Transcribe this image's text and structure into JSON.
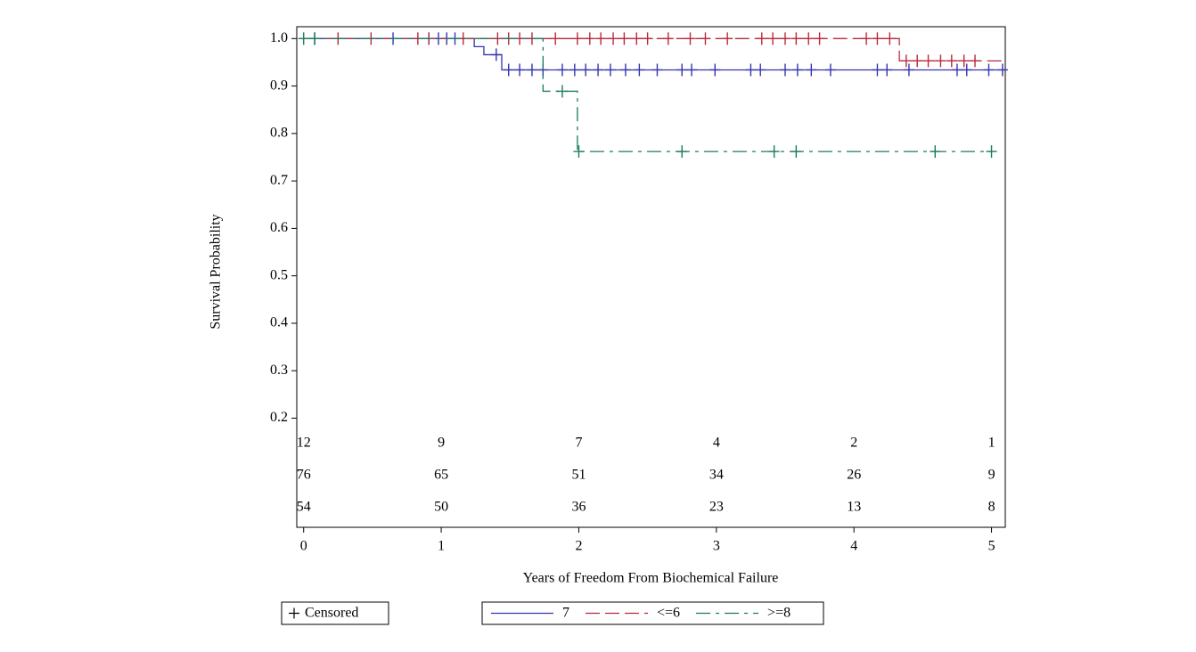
{
  "chart_data": {
    "type": "step",
    "x_label": "Years of Freedom From Biochemical Failure",
    "y_label": "Survival Probability",
    "xlim": [
      -0.05,
      5.1
    ],
    "ylim": [
      -0.03,
      1.025
    ],
    "xticks": [
      0,
      1,
      2,
      3,
      4,
      5
    ],
    "yticks": [
      0.2,
      0.3,
      0.4,
      0.5,
      0.6,
      0.7,
      0.8,
      0.9,
      {
        "value": 1,
        "label": "1.0"
      }
    ],
    "censored_label": "Censored",
    "series": [
      {
        "name": "7",
        "color": "#3535b0",
        "dash": "solid",
        "x": [
          0,
          1.24,
          1.31,
          1.44,
          5.1
        ],
        "values": [
          1,
          0.983,
          0.966,
          0.934,
          0.934
        ],
        "censored_x": [
          0.08,
          0.65,
          0.91,
          0.98,
          1.04,
          1.1,
          1.4,
          1.49,
          1.57,
          1.66,
          1.74,
          1.88,
          1.97,
          2.05,
          2.14,
          2.23,
          2.34,
          2.44,
          2.57,
          2.75,
          2.82,
          2.99,
          3.25,
          3.32,
          3.5,
          3.59,
          3.69,
          3.83,
          4.17,
          4.24,
          4.4,
          4.75,
          4.82,
          4.98,
          5.08
        ],
        "censored_values": [
          1,
          1,
          1,
          1,
          1,
          1,
          0.966,
          0.934,
          0.934,
          0.934,
          0.934,
          0.934,
          0.934,
          0.934,
          0.934,
          0.934,
          0.934,
          0.934,
          0.934,
          0.934,
          0.934,
          0.934,
          0.934,
          0.934,
          0.934,
          0.934,
          0.934,
          0.934,
          0.934,
          0.934,
          0.934,
          0.934,
          0.934,
          0.934,
          0.934
        ],
        "at_risk": [
          54,
          50,
          36,
          23,
          13,
          8
        ]
      },
      {
        "name": "<=6",
        "color": "#b82a3e",
        "dash": "dashed",
        "x": [
          0,
          4.33,
          5.09
        ],
        "values": [
          1,
          0.953,
          0.953
        ],
        "censored_x": [
          0.25,
          0.49,
          0.83,
          0.91,
          1.16,
          1.41,
          1.49,
          1.57,
          1.66,
          1.83,
          1.99,
          2.08,
          2.16,
          2.25,
          2.33,
          2.42,
          2.5,
          2.65,
          2.81,
          2.92,
          3.08,
          3.33,
          3.41,
          3.5,
          3.58,
          3.67,
          3.75,
          4.09,
          4.17,
          4.26,
          4.38,
          4.46,
          4.54,
          4.63,
          4.71,
          4.8,
          4.88
        ],
        "censored_values": [
          1,
          1,
          1,
          1,
          1,
          1,
          1,
          1,
          1,
          1,
          1,
          1,
          1,
          1,
          1,
          1,
          1,
          1,
          1,
          1,
          1,
          1,
          1,
          1,
          1,
          1,
          1,
          1,
          1,
          1,
          0.953,
          0.953,
          0.953,
          0.953,
          0.953,
          0.953,
          0.953
        ],
        "at_risk": [
          76,
          65,
          51,
          34,
          26,
          9
        ]
      },
      {
        "name": ">=8",
        "color": "#1b7a60",
        "dash": "dashdot",
        "x": [
          0,
          1.74,
          1.99,
          5.0
        ],
        "values": [
          1,
          0.889,
          0.762,
          0.762
        ],
        "censored_x": [
          0,
          0.08,
          1.88,
          2.0,
          2.75,
          3.42,
          3.58,
          4.59,
          5.0
        ],
        "censored_values": [
          1,
          1,
          0.889,
          0.762,
          0.762,
          0.762,
          0.762,
          0.762,
          0.762
        ],
        "at_risk": [
          12,
          9,
          7,
          4,
          2,
          1
        ]
      }
    ]
  }
}
